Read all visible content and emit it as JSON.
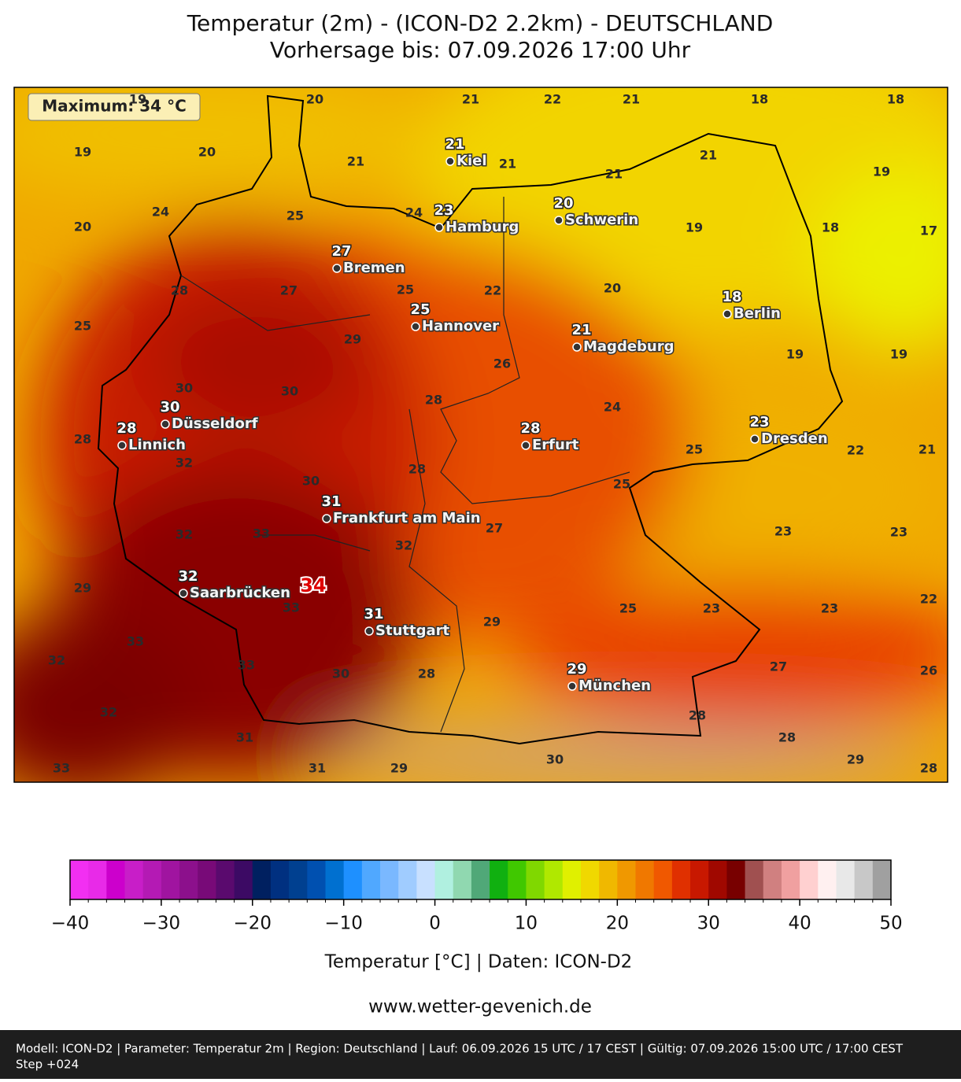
{
  "title": "Temperatur (2m) - (ICON-D2 2.2km) - DEUTSCHLAND",
  "subtitle": "Vorhersage bis: 07.09.2026 17:00 Uhr",
  "map": {
    "maximum_label": "Maximum: 34 °C",
    "maximum_value": 34,
    "grid_values": [
      19,
      20,
      21,
      22,
      21,
      18,
      18,
      19,
      20,
      21,
      21,
      21,
      21,
      19,
      24,
      25,
      24,
      20,
      19,
      18,
      17,
      28,
      27,
      25,
      22,
      20,
      25,
      29,
      19,
      19,
      26,
      30,
      30,
      28,
      24,
      28,
      32,
      28,
      25,
      22,
      21,
      30,
      25,
      32,
      33,
      32,
      27,
      23,
      23,
      29,
      33,
      29,
      25,
      23,
      23,
      22,
      33,
      32,
      33,
      30,
      28,
      27,
      26,
      32,
      28,
      31,
      28,
      33,
      31,
      29,
      30,
      29,
      28
    ],
    "cities": [
      {
        "name": "Kiel",
        "value": 21
      },
      {
        "name": "Hamburg",
        "value": 23
      },
      {
        "name": "Schwerin",
        "value": 20
      },
      {
        "name": "Bremen",
        "value": 27
      },
      {
        "name": "Hannover",
        "value": 25
      },
      {
        "name": "Berlin",
        "value": 18
      },
      {
        "name": "Magdeburg",
        "value": 21
      },
      {
        "name": "Düsseldorf",
        "value": 30
      },
      {
        "name": "Linnich",
        "value": 28
      },
      {
        "name": "Erfurt",
        "value": 28
      },
      {
        "name": "Dresden",
        "value": 23
      },
      {
        "name": "Frankfurt am Main",
        "value": 31
      },
      {
        "name": "Saarbrücken",
        "value": 32
      },
      {
        "name": "Stuttgart",
        "value": 31
      },
      {
        "name": "München",
        "value": 29
      }
    ]
  },
  "colorbar": {
    "xlim": [
      -40,
      50
    ],
    "xticks": [
      -40,
      -30,
      -20,
      -10,
      0,
      10,
      20,
      30,
      40,
      50
    ],
    "colors": [
      "#f22ff2",
      "#e82ae8",
      "#cc00cc",
      "#c81ec8",
      "#b41ab4",
      "#a014a0",
      "#8c108c",
      "#780a78",
      "#5a0a6e",
      "#3c0a64",
      "#002060",
      "#003080",
      "#004090",
      "#0050b0",
      "#0070d0",
      "#1e90ff",
      "#50a8ff",
      "#7ab8ff",
      "#a0ccff",
      "#c8e0ff",
      "#b0f0e0",
      "#90d8b0",
      "#50a878",
      "#10b010",
      "#40c800",
      "#80d800",
      "#b0e800",
      "#e0f000",
      "#f0d800",
      "#f0b800",
      "#f09800",
      "#f07800",
      "#f05800",
      "#e03000",
      "#c81800",
      "#a00800",
      "#780000",
      "#a05050",
      "#d08080",
      "#f0a0a0",
      "#ffd0d0",
      "#fff0f0",
      "#e8e8e8",
      "#c8c8c8",
      "#a0a0a0"
    ],
    "label": "Temperatur [°C] | Daten: ICON-D2"
  },
  "website": "www.wetter-gevenich.de",
  "footer": {
    "line1": "Modell: ICON-D2 | Parameter: Temperatur 2m | Region: Deutschland | Lauf: 06.09.2026 15 UTC / 17 CEST | Gültig: 07.09.2026 15:00 UTC / 17:00 CEST",
    "line2": "Step +024"
  }
}
